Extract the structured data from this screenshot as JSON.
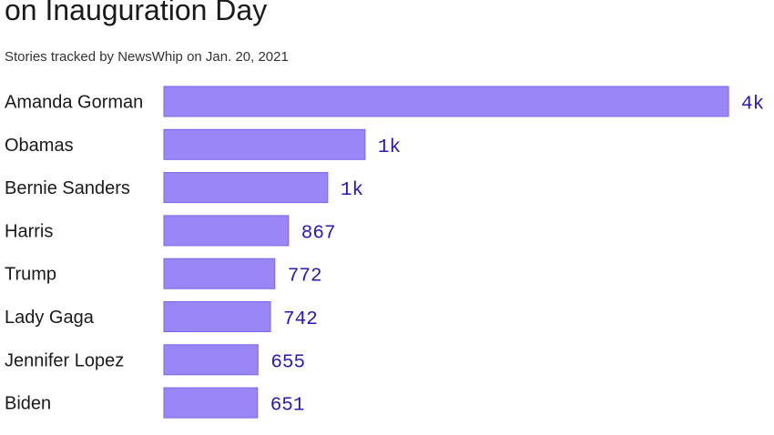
{
  "chart_data": {
    "type": "bar",
    "orientation": "horizontal",
    "title": "on Inauguration Day",
    "subtitle": "Stories tracked by NewsWhip on Jan. 20, 2021",
    "categories": [
      "Amanda Gorman",
      "Obamas",
      "Bernie Sanders",
      "Harris",
      "Trump",
      "Lady Gaga",
      "Jennifer Lopez",
      "Biden"
    ],
    "values": [
      3930,
      1400,
      1140,
      867,
      772,
      742,
      655,
      651
    ],
    "value_labels": [
      "4k",
      "1k",
      "1k",
      "867",
      "772",
      "742",
      "655",
      "651"
    ],
    "xlabel": "",
    "ylabel": "",
    "grid": false,
    "bar_color": "#9a86f7",
    "label_color": "#2a19b5"
  }
}
